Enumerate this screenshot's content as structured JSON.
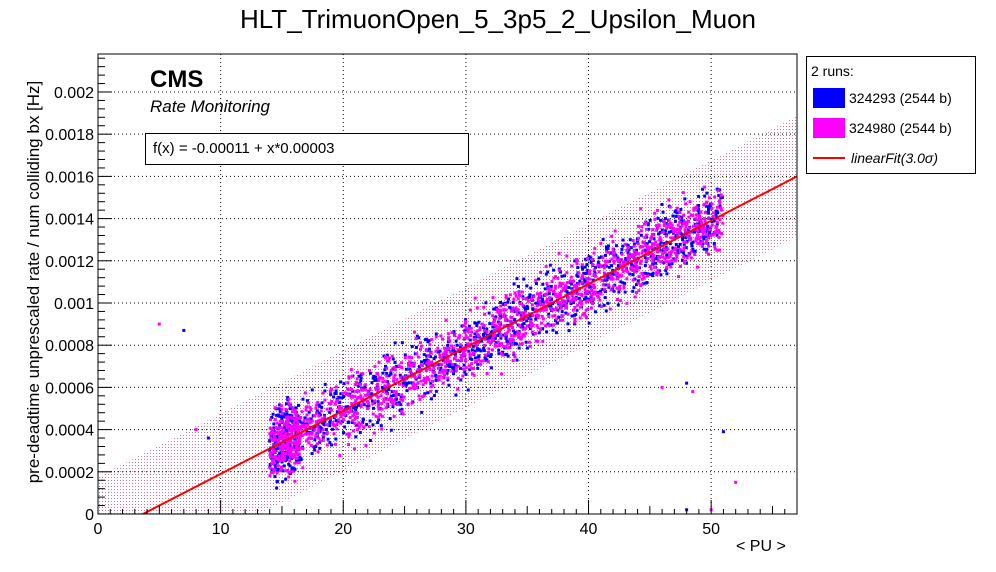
{
  "chart_data": {
    "type": "scatter",
    "title": "HLT_TrimuonOpen_5_3p5_2_Upsilon_Muon",
    "xlabel": "< PU >",
    "ylabel": "pre-deadtime unprescaled rate / num colliding bx [Hz]",
    "xlim": [
      0,
      57
    ],
    "ylim": [
      0,
      0.00218
    ],
    "xticks": [
      0,
      10,
      20,
      30,
      40,
      50
    ],
    "yticks": [
      "0",
      "0.0002",
      "0.0004",
      "0.0006",
      "0.0008",
      "0.001",
      "0.0012",
      "0.0014",
      "0.0016",
      "0.0018",
      "0.002"
    ],
    "grid": true,
    "legend_position": "outside-top-right",
    "legend": {
      "header": "2 runs:",
      "entries": [
        "324293 (2544 b)",
        "324980 (2544 b)",
        "linearFit(3.0σ)"
      ]
    },
    "series": [
      {
        "name": "324293 (2544 b)",
        "color": "#0000ff",
        "marker": "square",
        "x_range": [
          14,
          51
        ],
        "trend": "linear"
      },
      {
        "name": "324980 (2544 b)",
        "color": "#ff00ff",
        "marker": "square",
        "x_range": [
          15,
          51
        ],
        "trend": "linear"
      }
    ],
    "fit": {
      "label": "linearFit(3.0σ)",
      "formula": "f(x) = -0.00011 + x*0.00003",
      "intercept": -0.00011,
      "slope": 3e-05,
      "band_sigma": 3.0,
      "color": "#ff0000"
    },
    "outliers": [
      {
        "x": 5,
        "y": 0.0009
      },
      {
        "x": 7,
        "y": 0.00087
      },
      {
        "x": 8,
        "y": 0.0004
      },
      {
        "x": 9,
        "y": 0.00036
      },
      {
        "x": 46,
        "y": 0.0006
      },
      {
        "x": 48,
        "y": 0.00062
      },
      {
        "x": 48.5,
        "y": 0.00058
      },
      {
        "x": 51,
        "y": 0.00039
      },
      {
        "x": 52,
        "y": 0.00015
      },
      {
        "x": 48,
        "y": 2e-05
      },
      {
        "x": 50,
        "y": 2e-05
      }
    ]
  },
  "annotations": {
    "cms": "CMS",
    "subtitle": "Rate Monitoring",
    "fit_formula": "f(x) = -0.00011 + x*0.00003"
  },
  "colors": {
    "series1": "#0000ff",
    "series2": "#ff00ff",
    "fit": "#ff0000",
    "band": "#a0004a"
  }
}
